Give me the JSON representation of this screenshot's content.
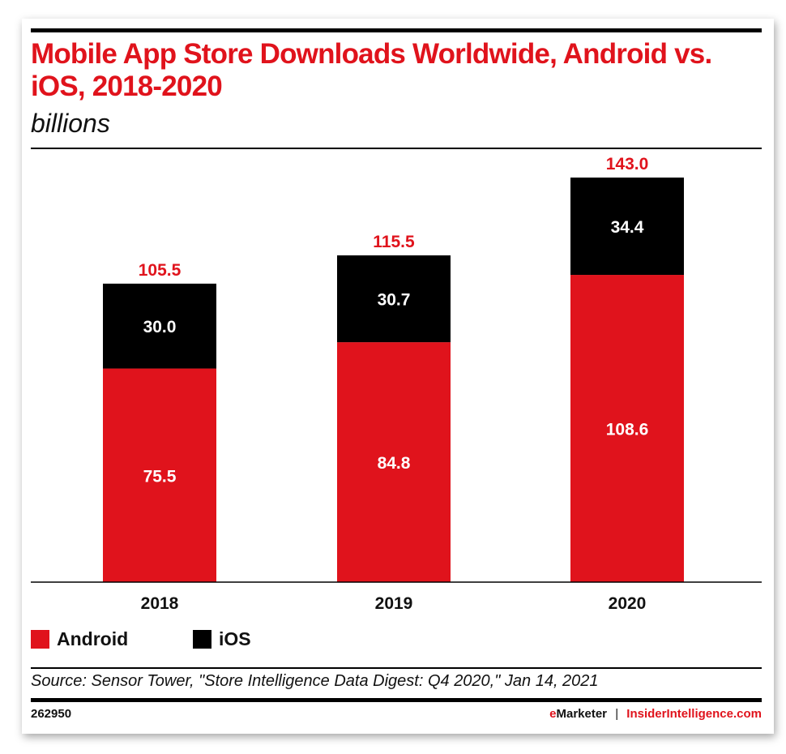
{
  "chart_data": {
    "type": "bar",
    "stacked": true,
    "title": "Mobile App Store Downloads Worldwide, Android vs. iOS, 2018-2020",
    "subtitle": "billions",
    "categories": [
      "2018",
      "2019",
      "2020"
    ],
    "series": [
      {
        "name": "Android",
        "color": "#e0131c",
        "values": [
          75.5,
          84.8,
          108.6
        ],
        "labels": [
          "75.5",
          "84.8",
          "108.6"
        ]
      },
      {
        "name": "iOS",
        "color": "#000000",
        "values": [
          30.0,
          30.7,
          34.4
        ],
        "labels": [
          "30.0",
          "30.7",
          "34.4"
        ]
      }
    ],
    "totals": [
      "105.5",
      "115.5",
      "143.0"
    ],
    "ylim": [
      0,
      143
    ],
    "grid": false,
    "legend": "bottom-left"
  },
  "source": "Source: Sensor Tower, \"Store Intelligence Data Digest: Q4 2020,\" Jan 14, 2021",
  "footer": {
    "id": "262950",
    "brand_e": "e",
    "brand_rest": "Marketer",
    "separator": "|",
    "site": "InsiderIntelligence.com"
  }
}
